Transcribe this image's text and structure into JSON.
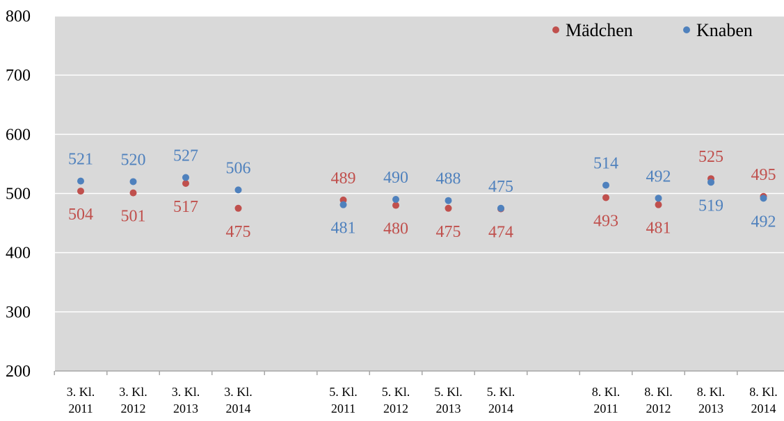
{
  "chart_data": {
    "type": "scatter",
    "title": "",
    "xlabel": "",
    "ylabel": "",
    "ylim": [
      200,
      800
    ],
    "yticks": [
      200,
      300,
      400,
      500,
      600,
      700,
      800
    ],
    "grid": true,
    "legend_position": "top-right",
    "categories": [
      {
        "line1": "3. Kl.",
        "line2": "2011"
      },
      {
        "line1": "3. Kl.",
        "line2": "2012"
      },
      {
        "line1": "3. Kl.",
        "line2": "2013"
      },
      {
        "line1": "3. Kl.",
        "line2": "2014"
      },
      {
        "line1": "",
        "line2": ""
      },
      {
        "line1": "5. Kl.",
        "line2": "2011"
      },
      {
        "line1": "5. Kl.",
        "line2": "2012"
      },
      {
        "line1": "5. Kl.",
        "line2": "2013"
      },
      {
        "line1": "5. Kl.",
        "line2": "2014"
      },
      {
        "line1": "",
        "line2": ""
      },
      {
        "line1": "8. Kl.",
        "line2": "2011"
      },
      {
        "line1": "8. Kl.",
        "line2": "2012"
      },
      {
        "line1": "8. Kl.",
        "line2": "2013"
      },
      {
        "line1": "8. Kl.",
        "line2": "2014"
      }
    ],
    "series": [
      {
        "name": "Mädchen",
        "color": "#C0504D",
        "values": [
          504,
          501,
          517,
          475,
          null,
          489,
          480,
          475,
          474,
          null,
          493,
          481,
          525,
          495
        ],
        "label_side": [
          "below",
          "below",
          "below",
          "below",
          null,
          "above",
          "below",
          "below",
          "below",
          null,
          "below",
          "below",
          "above",
          "above"
        ]
      },
      {
        "name": "Knaben",
        "color": "#4F81BD",
        "values": [
          521,
          520,
          527,
          506,
          null,
          481,
          490,
          488,
          475,
          null,
          514,
          492,
          519,
          492
        ],
        "label_side": [
          "above",
          "above",
          "above",
          "above",
          null,
          "below",
          "above",
          "above",
          "above",
          null,
          "above",
          "above",
          "below",
          "below"
        ]
      }
    ],
    "colors": {
      "plot_background": "#D9D9D9",
      "gridline": "#FFFFFF",
      "axis": "#A6A6A6",
      "text": "#000000"
    }
  }
}
